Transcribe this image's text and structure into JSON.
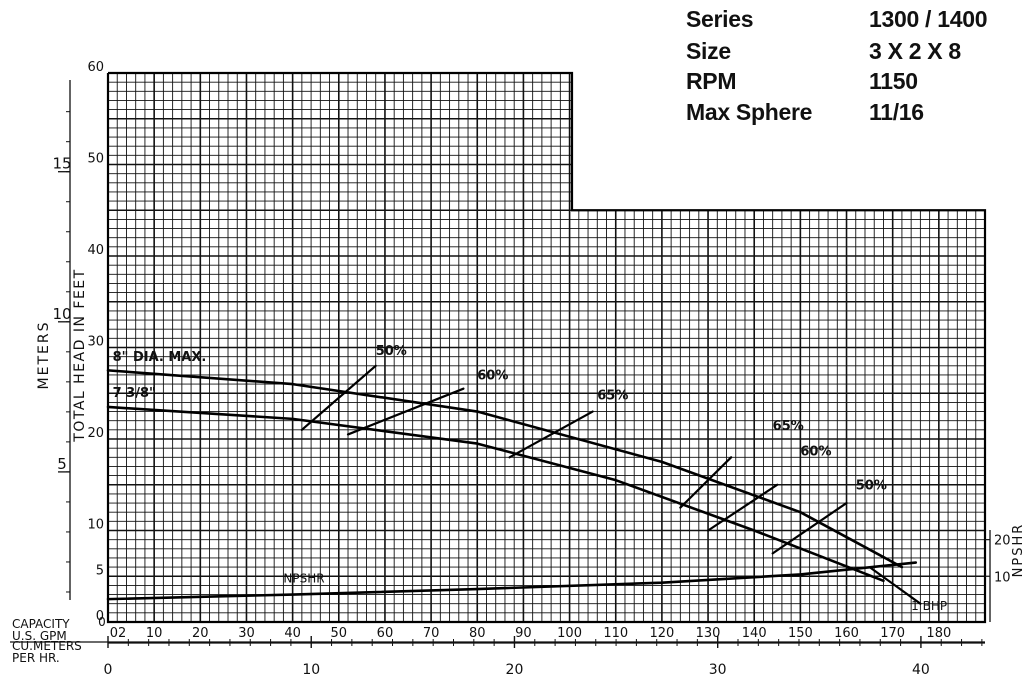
{
  "specs": [
    {
      "label": "Series",
      "value": "1300 / 1400"
    },
    {
      "label": "Size",
      "value": "3 X 2 X 8"
    },
    {
      "label": "RPM",
      "value": "1150"
    },
    {
      "label": "Max Sphere",
      "value": "11/16"
    }
  ],
  "chart_data": {
    "type": "line",
    "title": "",
    "ylabel": "TOTAL HEAD IN FEET",
    "ylabel_meters": "METERS",
    "ylabel_npshr": "NPSHR",
    "xlabel_gpm": "CAPACITY U.S. GPM",
    "xlabel_m3h": "CU.METERS PER HR.",
    "xlim": [
      0,
      190
    ],
    "ylim": [
      0,
      60
    ],
    "grid": true,
    "x_ticks_gpm": [
      "02",
      "10",
      "20",
      "30",
      "40",
      "50",
      "60",
      "70",
      "80",
      "90",
      "100",
      "110",
      "120",
      "130",
      "140",
      "150",
      "160",
      "170",
      "180"
    ],
    "x_ticks_m3h": [
      "0",
      "10",
      "20",
      "30",
      "40"
    ],
    "y_ticks_feet": [
      "0",
      "5",
      "10",
      "20",
      "30",
      "40",
      "50",
      "60"
    ],
    "y_ticks_meters": [
      "5",
      "10",
      "15"
    ],
    "npshr_ticks": [
      "10",
      "20"
    ],
    "impeller_curves": [
      {
        "name": "8\" DIA. MAX.",
        "x": [
          0,
          40,
          80,
          120,
          150,
          172
        ],
        "y": [
          27.5,
          26,
          23,
          17.5,
          12,
          6
        ]
      },
      {
        "name": "7 3/8\"",
        "x": [
          0,
          40,
          80,
          110,
          140,
          168
        ],
        "y": [
          23.5,
          22.2,
          19.5,
          15.5,
          10,
          4.5
        ]
      }
    ],
    "efficiency_curves": [
      {
        "name": "50%",
        "x": [
          42,
          58
        ],
        "y": [
          21,
          28
        ]
      },
      {
        "name": "60%",
        "x": [
          52,
          77
        ],
        "y": [
          20.5,
          25.5
        ]
      },
      {
        "name": "65%",
        "x": [
          87,
          105
        ],
        "y": [
          18,
          23
        ]
      },
      {
        "name": "65%",
        "x": [
          124,
          135
        ],
        "y": [
          12.5,
          18
        ]
      },
      {
        "name": "60%",
        "x": [
          130,
          145
        ],
        "y": [
          10,
          15
        ]
      },
      {
        "name": "50%",
        "x": [
          144,
          160
        ],
        "y": [
          7.5,
          13
        ]
      }
    ],
    "npshr_curve": {
      "name": "NPSHR",
      "x": [
        0,
        40,
        80,
        120,
        150,
        175
      ],
      "y": [
        2.5,
        3,
        3.6,
        4.3,
        5.2,
        6.5
      ]
    },
    "hp_lines": [
      {
        "name": "1 BHP",
        "x": [
          165,
          176
        ],
        "y": [
          6,
          2
        ]
      }
    ],
    "labels": {
      "max_dia": "8\" DIA. MAX.",
      "dia_2": "7 3/8\"",
      "npshr_curve": "NPSHR",
      "bhp": "1 BHP"
    }
  }
}
